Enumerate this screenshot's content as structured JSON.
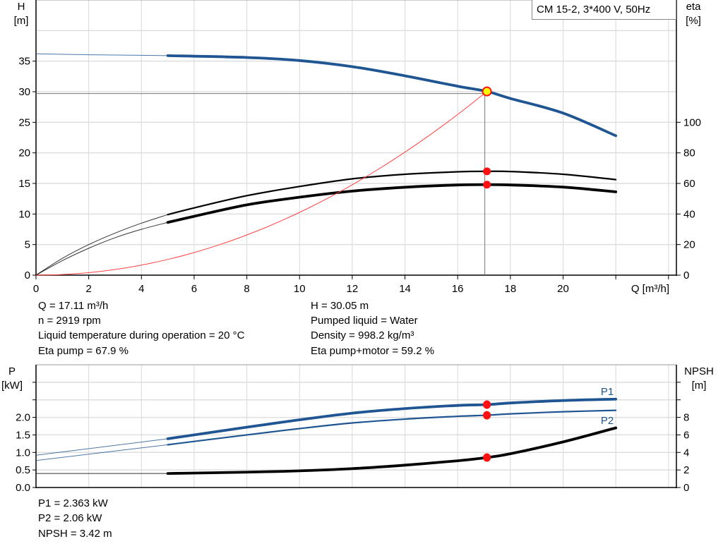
{
  "title_box": "CM 15-2, 3*400 V, 50Hz",
  "chart_data": [
    {
      "type": "line",
      "xlabel": "Q [m³/h]",
      "ylabel_left": [
        "H",
        "[m]"
      ],
      "ylabel_right": [
        "eta",
        "[%]"
      ],
      "xlim": [
        0,
        24.3
      ],
      "ylim_left": [
        0,
        45
      ],
      "ylim_right": [
        0,
        180
      ],
      "xticks": [
        0,
        2,
        4,
        6,
        8,
        10,
        12,
        14,
        16,
        18,
        20
      ],
      "xtick_marks": [
        0,
        2,
        4,
        6,
        8,
        10,
        12,
        14,
        16,
        18,
        20,
        22,
        24
      ],
      "yticks_left": [
        0,
        5,
        10,
        15,
        20,
        25,
        30,
        35
      ],
      "yticks_right": [
        0,
        20,
        40,
        60,
        80,
        100
      ],
      "grid": true,
      "series": [
        {
          "key": "H",
          "axis": "left",
          "color": "#1f5592",
          "thin_until": 5,
          "x": [
            0,
            2,
            4,
            5,
            8,
            10,
            12,
            14,
            16,
            17.11,
            18,
            20,
            22
          ],
          "y": [
            36.2,
            36.05,
            35.95,
            35.9,
            35.6,
            35.1,
            34.1,
            32.6,
            30.9,
            30.05,
            28.9,
            26.5,
            22.8
          ]
        },
        {
          "key": "eta_pump",
          "axis": "right",
          "color": "#000000",
          "thin_until": 5,
          "x": [
            0,
            1,
            2,
            3,
            4,
            5,
            6,
            8,
            10,
            12,
            14,
            16,
            17.11,
            18,
            20,
            22
          ],
          "y": [
            0,
            11,
            20,
            27.5,
            34,
            39.6,
            44,
            52,
            58,
            63,
            66,
            67.6,
            67.9,
            67.8,
            66,
            62.5
          ]
        },
        {
          "key": "eta_pump_motor",
          "axis": "right",
          "color": "#000000",
          "thin_until": 5,
          "x": [
            0,
            1,
            2,
            3,
            4,
            5,
            6,
            8,
            10,
            12,
            14,
            16,
            17.11,
            18,
            20,
            22
          ],
          "y": [
            0,
            9.5,
            17.6,
            24.5,
            30,
            34.5,
            38.5,
            46,
            51,
            55,
            57.5,
            59,
            59.2,
            59,
            57.6,
            54.5
          ]
        },
        {
          "key": "system",
          "axis": "left",
          "color": "#ff4040",
          "quadratic_through": [
            17.11,
            30.05
          ]
        }
      ],
      "duty_point": {
        "Q": 17.11,
        "H": 30.05,
        "eta_pump": 67.9,
        "eta_pump_motor": 59.2
      }
    },
    {
      "type": "line",
      "ylabel_left": [
        "P",
        "[kW]"
      ],
      "ylabel_right": [
        "NPSH",
        "[m]"
      ],
      "xlim": [
        0,
        24.3
      ],
      "ylim_left": [
        0,
        3.5
      ],
      "ylim_right": [
        0,
        14
      ],
      "yticks_left": [
        "0.0",
        "0.5",
        "1.0",
        "1.5",
        "2.0"
      ],
      "yticks_right": [
        0,
        2,
        4,
        6,
        8
      ],
      "grid": true,
      "series": [
        {
          "key": "P1",
          "name": "P1",
          "axis": "left",
          "color": "#1f5592",
          "thin_until": 5,
          "x": [
            0,
            5,
            8,
            10,
            12,
            14,
            16,
            17.11,
            18,
            20,
            22
          ],
          "y": [
            0.92,
            1.39,
            1.72,
            1.93,
            2.12,
            2.25,
            2.34,
            2.363,
            2.41,
            2.48,
            2.52
          ]
        },
        {
          "key": "P2",
          "name": "P2",
          "axis": "left",
          "color": "#1f5592",
          "thin_until": 5,
          "x": [
            0,
            5,
            8,
            10,
            12,
            14,
            16,
            17.11,
            18,
            20,
            22
          ],
          "y": [
            0.77,
            1.22,
            1.5,
            1.68,
            1.84,
            1.95,
            2.03,
            2.06,
            2.1,
            2.16,
            2.2
          ]
        },
        {
          "key": "NPSH",
          "axis": "right",
          "color": "#000000",
          "thin_until": 5,
          "x": [
            0,
            5,
            8,
            10,
            12,
            14,
            16,
            17.11,
            18,
            20,
            22
          ],
          "y": [
            1.6,
            1.6,
            1.75,
            1.9,
            2.15,
            2.55,
            3.05,
            3.42,
            3.85,
            5.2,
            6.8
          ]
        }
      ],
      "duty_point": {
        "Q": 17.11,
        "P1": 2.363,
        "P2": 2.06,
        "NPSH": 3.42
      }
    }
  ],
  "info_top": {
    "left": [
      "Q = 17.11 m³/h",
      "n = 2919 rpm",
      "Liquid temperature during operation = 20 °C",
      "Eta pump = 67.9 %"
    ],
    "right": [
      "H = 30.05 m",
      "Pumped liquid = Water",
      "Density = 998.2 kg/m³",
      "Eta pump+motor = 59.2 %"
    ]
  },
  "info_bottom": [
    "P1 = 2.363 kW",
    "P2 = 2.06 kW",
    "NPSH = 3.42 m"
  ]
}
